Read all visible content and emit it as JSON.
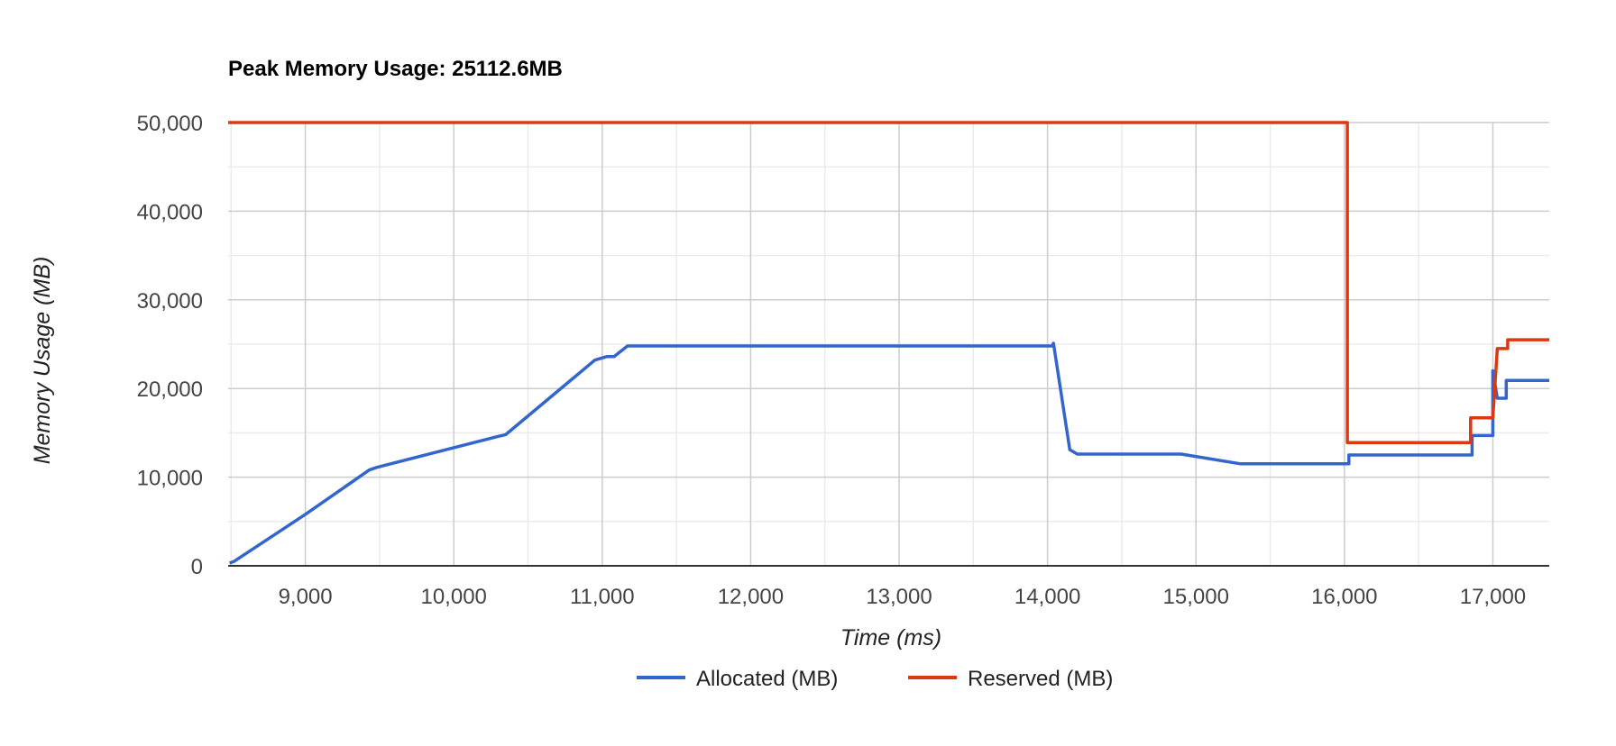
{
  "chart_data": {
    "type": "line",
    "title": "Peak Memory Usage: 25112.6MB",
    "xlabel": "Time (ms)",
    "ylabel": "Memory Usage (MB)",
    "xlim": [
      8480,
      17380
    ],
    "ylim": [
      0,
      50000
    ],
    "x_ticks": [
      9000,
      10000,
      11000,
      12000,
      13000,
      14000,
      15000,
      16000,
      17000
    ],
    "x_tick_labels": [
      "9,000",
      "10,000",
      "11,000",
      "12,000",
      "13,000",
      "14,000",
      "15,000",
      "16,000",
      "17,000"
    ],
    "y_ticks": [
      0,
      10000,
      20000,
      30000,
      40000,
      50000
    ],
    "y_tick_labels": [
      "0",
      "10,000",
      "20,000",
      "30,000",
      "40,000",
      "50,000"
    ],
    "grid": true,
    "legend_position": "bottom",
    "series": [
      {
        "name": "Allocated (MB)",
        "color": "#3366cc",
        "points": [
          [
            8490,
            300
          ],
          [
            8520,
            500
          ],
          [
            9000,
            5800
          ],
          [
            9430,
            10800
          ],
          [
            9480,
            11100
          ],
          [
            10300,
            14600
          ],
          [
            10350,
            14800
          ],
          [
            10950,
            23200
          ],
          [
            11030,
            23600
          ],
          [
            11080,
            23600
          ],
          [
            11170,
            24800
          ],
          [
            14030,
            24800
          ],
          [
            14040,
            25100
          ],
          [
            14150,
            13100
          ],
          [
            14200,
            12600
          ],
          [
            14900,
            12600
          ],
          [
            15300,
            11500
          ],
          [
            16030,
            11500
          ],
          [
            16030,
            12500
          ],
          [
            16860,
            12500
          ],
          [
            16860,
            14700
          ],
          [
            17000,
            14700
          ],
          [
            17000,
            22000
          ],
          [
            17030,
            18900
          ],
          [
            17090,
            18900
          ],
          [
            17090,
            20900
          ],
          [
            17380,
            20900
          ]
        ]
      },
      {
        "name": "Reserved (MB)",
        "color": "#dc3912",
        "points": [
          [
            8480,
            50000
          ],
          [
            16020,
            50000
          ],
          [
            16020,
            13900
          ],
          [
            16850,
            13900
          ],
          [
            16850,
            16700
          ],
          [
            17000,
            16700
          ],
          [
            17030,
            24500
          ],
          [
            17100,
            24500
          ],
          [
            17100,
            25500
          ],
          [
            17380,
            25500
          ]
        ]
      }
    ]
  }
}
